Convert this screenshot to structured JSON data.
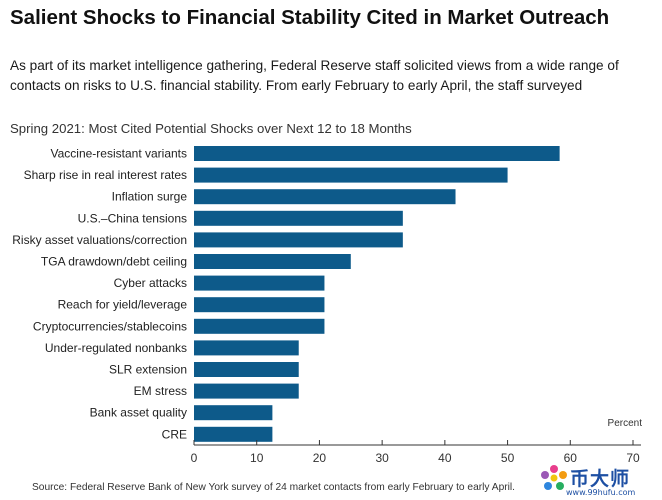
{
  "header": {
    "title": "Salient Shocks to Financial Stability Cited in Market Outreach",
    "intro": "As part of its market intelligence gathering, Federal Reserve staff solicited views from a wide range of contacts on risks to U.S. financial stability. From early February to early April, the staff surveyed"
  },
  "footer": {
    "source": "Source: Federal Reserve Bank of New York survey of 24 market contacts from early February to early April."
  },
  "watermark": {
    "text": "币大师",
    "url": "www.99hufu.com"
  },
  "chart_data": {
    "type": "bar",
    "orientation": "horizontal",
    "title": "Spring 2021: Most Cited Potential Shocks over Next 12 to 18 Months",
    "unit_label": "Percent",
    "categories": [
      "Vaccine-resistant variants",
      "Sharp rise in real interest rates",
      "Inflation surge",
      "U.S.–China tensions",
      "Risky asset valuations/correction",
      "TGA drawdown/debt ceiling",
      "Cyber attacks",
      "Reach for yield/leverage",
      "Cryptocurrencies/stablecoins",
      "Under-regulated nonbanks",
      "SLR extension",
      "EM stress",
      "Bank asset quality",
      "CRE"
    ],
    "values": [
      58.3,
      50.0,
      41.7,
      33.3,
      33.3,
      25.0,
      20.8,
      20.8,
      20.8,
      16.7,
      16.7,
      16.7,
      12.5,
      12.5
    ],
    "xlim": [
      0,
      70
    ],
    "xticks": [
      0,
      10,
      20,
      30,
      40,
      50,
      60,
      70
    ],
    "bar_color": "#0d5a8a",
    "grid": false
  }
}
